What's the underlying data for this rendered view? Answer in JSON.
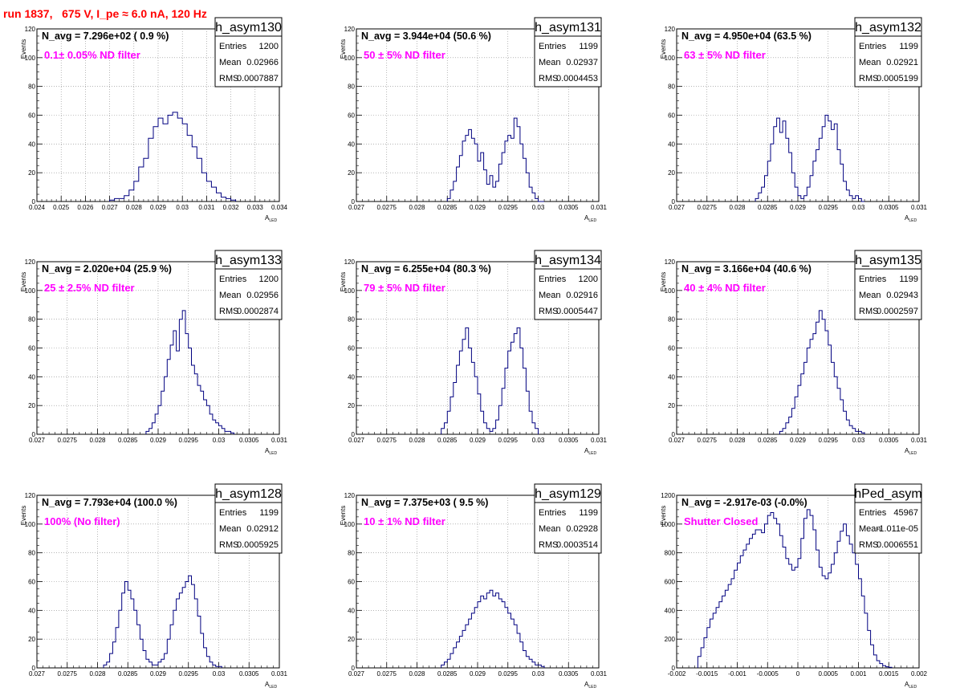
{
  "title": "run 1837,   675 V, I_pe ≈ 6.0 nA, 120 Hz",
  "x_axis_label_main": "A",
  "x_axis_label_sub": "LED",
  "y_axis_label": "Events",
  "stats_labels": {
    "entries": "Entries",
    "mean": "Mean",
    "rms": "RMS"
  },
  "colors": {
    "histogram": "#000080",
    "note": "#ff00ff",
    "title": "#ff0000",
    "grid": "#888888"
  },
  "chart_data": [
    {
      "type": "histogram",
      "name": "h_asym130",
      "navg_text": "N_avg = 7.296e+02 ( 0.9 %)",
      "note": "0.1± 0.05% ND filter",
      "entries": "1200",
      "mean": "0.02966",
      "rms": "0.0007887",
      "xlim": [
        0.024,
        0.034
      ],
      "ylim": [
        0,
        120
      ],
      "xticks": [
        "0.024",
        "0.025",
        "0.026",
        "0.027",
        "0.028",
        "0.029",
        "0.03",
        "0.031",
        "0.032",
        "0.033",
        "0.034"
      ],
      "yticks": [
        "0",
        "20",
        "40",
        "60",
        "80",
        "100",
        "120"
      ],
      "bins": [
        0.027,
        0.0272,
        0.0274,
        0.0276,
        0.0278,
        0.028,
        0.0282,
        0.0284,
        0.0286,
        0.0288,
        0.029,
        0.0292,
        0.0294,
        0.0296,
        0.0298,
        0.03,
        0.0302,
        0.0304,
        0.0306,
        0.0308,
        0.031,
        0.0312,
        0.0314,
        0.0316,
        0.0318,
        0.032,
        0.0322
      ],
      "counts": [
        1,
        2,
        2,
        4,
        8,
        14,
        24,
        30,
        44,
        52,
        58,
        54,
        60,
        62,
        58,
        54,
        46,
        38,
        30,
        20,
        14,
        10,
        6,
        3,
        2,
        1
      ]
    },
    {
      "type": "histogram",
      "name": "h_asym131",
      "navg_text": "N_avg = 3.944e+04 (50.6 %)",
      "note": "50 ± 5% ND filter",
      "entries": "1199",
      "mean": "0.02937",
      "rms": "0.0004453",
      "xlim": [
        0.027,
        0.031
      ],
      "ylim": [
        0,
        120
      ],
      "xticks": [
        "0.027",
        "0.0275",
        "0.028",
        "0.0285",
        "0.029",
        "0.0295",
        "0.03",
        "0.0305",
        "0.031"
      ],
      "yticks": [
        "0",
        "20",
        "40",
        "60",
        "80",
        "100",
        "120"
      ],
      "bins": [
        0.0285,
        0.02855,
        0.0286,
        0.02865,
        0.0287,
        0.02875,
        0.0288,
        0.02885,
        0.0289,
        0.02895,
        0.029,
        0.02905,
        0.0291,
        0.02915,
        0.0292,
        0.02925,
        0.0293,
        0.02935,
        0.0294,
        0.02945,
        0.0295,
        0.02955,
        0.0296,
        0.02965,
        0.0297,
        0.02975,
        0.0298,
        0.02985,
        0.0299,
        0.02995,
        0.03,
        0.03005,
        0.0301
      ],
      "counts": [
        2,
        8,
        14,
        24,
        32,
        42,
        46,
        50,
        44,
        40,
        28,
        34,
        22,
        12,
        18,
        10,
        14,
        26,
        34,
        42,
        46,
        44,
        58,
        52,
        40,
        30,
        20,
        10,
        6,
        2,
        0,
        0
      ]
    },
    {
      "type": "histogram",
      "name": "h_asym132",
      "navg_text": "N_avg = 4.950e+04 (63.5 %)",
      "note": "63 ± 5% ND filter",
      "entries": "1199",
      "mean": "0.02921",
      "rms": "0.0005199",
      "xlim": [
        0.027,
        0.031
      ],
      "ylim": [
        0,
        120
      ],
      "xticks": [
        "0.027",
        "0.0275",
        "0.028",
        "0.0285",
        "0.029",
        "0.0295",
        "0.03",
        "0.0305",
        "0.031"
      ],
      "yticks": [
        "0",
        "20",
        "40",
        "60",
        "80",
        "100",
        "120"
      ],
      "bins": [
        0.0283,
        0.02835,
        0.0284,
        0.02845,
        0.0285,
        0.02855,
        0.0286,
        0.02865,
        0.0287,
        0.02875,
        0.0288,
        0.02885,
        0.0289,
        0.02895,
        0.029,
        0.02905,
        0.0291,
        0.02915,
        0.0292,
        0.02925,
        0.0293,
        0.02935,
        0.0294,
        0.02945,
        0.0295,
        0.02955,
        0.0296,
        0.02965,
        0.0297,
        0.02975,
        0.0298,
        0.02985,
        0.0299,
        0.02995,
        0.03,
        0.03005,
        0.0301
      ],
      "counts": [
        2,
        6,
        10,
        18,
        28,
        40,
        52,
        58,
        48,
        56,
        44,
        34,
        20,
        10,
        4,
        2,
        4,
        10,
        18,
        28,
        36,
        44,
        52,
        60,
        56,
        50,
        54,
        36,
        26,
        14,
        8,
        4,
        2,
        4,
        2,
        0
      ]
    },
    {
      "type": "histogram",
      "name": "h_asym133",
      "navg_text": "N_avg = 2.020e+04 (25.9 %)",
      "note": "25 ± 2.5% ND filter",
      "entries": "1200",
      "mean": "0.02956",
      "rms": "0.0002874",
      "xlim": [
        0.027,
        0.031
      ],
      "ylim": [
        0,
        120
      ],
      "xticks": [
        "0.027",
        "0.0275",
        "0.028",
        "0.0285",
        "0.029",
        "0.0295",
        "0.03",
        "0.0305",
        "0.031"
      ],
      "yticks": [
        "0",
        "20",
        "40",
        "60",
        "80",
        "100",
        "120"
      ],
      "bins": [
        0.0288,
        0.02885,
        0.0289,
        0.02895,
        0.029,
        0.02905,
        0.0291,
        0.02915,
        0.0292,
        0.02925,
        0.0293,
        0.02935,
        0.0294,
        0.02945,
        0.0295,
        0.02955,
        0.0296,
        0.02965,
        0.0297,
        0.02975,
        0.0298,
        0.02985,
        0.0299,
        0.02995,
        0.03,
        0.03005,
        0.0301,
        0.03015,
        0.0302,
        0.03025
      ],
      "counts": [
        2,
        4,
        8,
        14,
        20,
        30,
        40,
        52,
        62,
        72,
        58,
        80,
        86,
        70,
        60,
        48,
        42,
        34,
        30,
        24,
        20,
        14,
        10,
        8,
        6,
        4,
        2,
        2,
        1
      ]
    },
    {
      "type": "histogram",
      "name": "h_asym134",
      "navg_text": "N_avg = 6.255e+04 (80.3 %)",
      "note": "79 ± 5% ND filter",
      "entries": "1200",
      "mean": "0.02916",
      "rms": "0.0005447",
      "xlim": [
        0.027,
        0.031
      ],
      "ylim": [
        0,
        120
      ],
      "xticks": [
        "0.027",
        "0.0275",
        "0.028",
        "0.0285",
        "0.029",
        "0.0295",
        "0.03",
        "0.0305",
        "0.031"
      ],
      "yticks": [
        "0",
        "20",
        "40",
        "60",
        "80",
        "100",
        "120"
      ],
      "bins": [
        0.0284,
        0.02845,
        0.0285,
        0.02855,
        0.0286,
        0.02865,
        0.0287,
        0.02875,
        0.0288,
        0.02885,
        0.0289,
        0.02895,
        0.029,
        0.02905,
        0.0291,
        0.02915,
        0.0292,
        0.02925,
        0.0293,
        0.02935,
        0.0294,
        0.02945,
        0.0295,
        0.02955,
        0.0296,
        0.02965,
        0.0297,
        0.02975,
        0.0298,
        0.02985,
        0.0299,
        0.02995,
        0.03
      ],
      "counts": [
        4,
        8,
        16,
        26,
        36,
        48,
        58,
        66,
        74,
        60,
        50,
        40,
        28,
        16,
        8,
        4,
        2,
        4,
        10,
        20,
        32,
        46,
        58,
        64,
        70,
        74,
        60,
        46,
        30,
        16,
        8,
        4
      ]
    },
    {
      "type": "histogram",
      "name": "h_asym135",
      "navg_text": "N_avg = 3.166e+04 (40.6 %)",
      "note": "40 ± 4% ND filter",
      "entries": "1199",
      "mean": "0.02943",
      "rms": "0.0002597",
      "xlim": [
        0.027,
        0.031
      ],
      "ylim": [
        0,
        120
      ],
      "xticks": [
        "0.027",
        "0.0275",
        "0.028",
        "0.0285",
        "0.029",
        "0.0295",
        "0.03",
        "0.0305",
        "0.031"
      ],
      "yticks": [
        "0",
        "20",
        "40",
        "60",
        "80",
        "100",
        "120"
      ],
      "bins": [
        0.0287,
        0.02875,
        0.0288,
        0.02885,
        0.0289,
        0.02895,
        0.029,
        0.02905,
        0.0291,
        0.02915,
        0.0292,
        0.02925,
        0.0293,
        0.02935,
        0.0294,
        0.02945,
        0.0295,
        0.02955,
        0.0296,
        0.02965,
        0.0297,
        0.02975,
        0.0298,
        0.02985,
        0.0299,
        0.02995,
        0.03,
        0.03005,
        0.0301
      ],
      "counts": [
        2,
        4,
        8,
        12,
        18,
        26,
        34,
        42,
        50,
        60,
        66,
        70,
        78,
        86,
        80,
        72,
        62,
        50,
        40,
        32,
        24,
        16,
        10,
        6,
        4,
        2,
        2,
        1
      ]
    },
    {
      "type": "histogram",
      "name": "h_asym128",
      "navg_text": "N_avg = 7.793e+04 (100.0 %)",
      "note": "100% (No filter)",
      "entries": "1199",
      "mean": "0.02912",
      "rms": "0.0005925",
      "xlim": [
        0.027,
        0.031
      ],
      "ylim": [
        0,
        120
      ],
      "xticks": [
        "0.027",
        "0.0275",
        "0.028",
        "0.0285",
        "0.029",
        "0.0295",
        "0.03",
        "0.0305",
        "0.031"
      ],
      "yticks": [
        "0",
        "20",
        "40",
        "60",
        "80",
        "100",
        "120"
      ],
      "bins": [
        0.0281,
        0.02815,
        0.0282,
        0.02825,
        0.0283,
        0.02835,
        0.0284,
        0.02845,
        0.0285,
        0.02855,
        0.0286,
        0.02865,
        0.0287,
        0.02875,
        0.0288,
        0.02885,
        0.0289,
        0.02895,
        0.029,
        0.02905,
        0.0291,
        0.02915,
        0.0292,
        0.02925,
        0.0293,
        0.02935,
        0.0294,
        0.02945,
        0.0295,
        0.02955,
        0.0296,
        0.02965,
        0.0297,
        0.02975,
        0.0298,
        0.02985,
        0.0299,
        0.02995,
        0.03,
        0.03005
      ],
      "counts": [
        2,
        4,
        10,
        18,
        28,
        40,
        52,
        60,
        54,
        48,
        40,
        30,
        20,
        12,
        6,
        4,
        2,
        2,
        4,
        6,
        10,
        20,
        30,
        40,
        48,
        52,
        56,
        60,
        64,
        58,
        48,
        36,
        24,
        14,
        8,
        4,
        2,
        1,
        1
      ]
    },
    {
      "type": "histogram",
      "name": "h_asym129",
      "navg_text": "N_avg = 7.375e+03 ( 9.5 %)",
      "note": "10 ± 1% ND filter",
      "entries": "1199",
      "mean": "0.02928",
      "rms": "0.0003514",
      "xlim": [
        0.027,
        0.031
      ],
      "ylim": [
        0,
        120
      ],
      "xticks": [
        "0.027",
        "0.0275",
        "0.028",
        "0.0285",
        "0.029",
        "0.0295",
        "0.03",
        "0.0305",
        "0.031"
      ],
      "yticks": [
        "0",
        "20",
        "40",
        "60",
        "80",
        "100",
        "120"
      ],
      "bins": [
        0.0284,
        0.02845,
        0.0285,
        0.02855,
        0.0286,
        0.02865,
        0.0287,
        0.02875,
        0.0288,
        0.02885,
        0.0289,
        0.02895,
        0.029,
        0.02905,
        0.0291,
        0.02915,
        0.0292,
        0.02925,
        0.0293,
        0.02935,
        0.0294,
        0.02945,
        0.0295,
        0.02955,
        0.0296,
        0.02965,
        0.0297,
        0.02975,
        0.0298,
        0.02985,
        0.0299,
        0.02995,
        0.03,
        0.03005,
        0.0301
      ],
      "counts": [
        2,
        4,
        6,
        10,
        14,
        18,
        22,
        26,
        30,
        34,
        38,
        42,
        46,
        50,
        48,
        52,
        54,
        50,
        52,
        48,
        46,
        42,
        38,
        34,
        30,
        24,
        18,
        12,
        8,
        6,
        4,
        2,
        2,
        1
      ]
    },
    {
      "type": "histogram",
      "name": "hPed_asym",
      "navg_text": "N_avg = -2.917e-03 (-0.0%)",
      "note": "Shutter Closed",
      "entries": "45967",
      "mean": "-1.011e-05",
      "rms": "0.0006551",
      "xlim": [
        -0.002,
        0.002
      ],
      "ylim": [
        0,
        1200
      ],
      "xticks": [
        "-0.002",
        "-0.0015",
        "-0.001",
        "-0.0005",
        "0",
        "0.0005",
        "0.001",
        "0.0015",
        "0.002"
      ],
      "yticks": [
        "0",
        "200",
        "400",
        "600",
        "800",
        "1000",
        "1200"
      ],
      "bins": [
        -0.00165,
        -0.0016,
        -0.00155,
        -0.0015,
        -0.00145,
        -0.0014,
        -0.00135,
        -0.0013,
        -0.00125,
        -0.0012,
        -0.00115,
        -0.0011,
        -0.00105,
        -0.001,
        -0.00095,
        -0.0009,
        -0.00085,
        -0.0008,
        -0.00075,
        -0.0007,
        -0.00065,
        -0.0006,
        -0.00055,
        -0.0005,
        -0.00045,
        -0.0004,
        -0.00035,
        -0.0003,
        -0.00025,
        -0.0002,
        -0.00015,
        -0.0001,
        -5e-05,
        0.0,
        5e-05,
        0.0001,
        0.00015,
        0.0002,
        0.00025,
        0.0003,
        0.00035,
        0.0004,
        0.00045,
        0.0005,
        0.00055,
        0.0006,
        0.00065,
        0.0007,
        0.00075,
        0.0008,
        0.00085,
        0.0009,
        0.00095,
        0.001,
        0.00105,
        0.0011,
        0.00115,
        0.0012,
        0.00125,
        0.0013,
        0.00135,
        0.0014,
        0.00145,
        0.0015,
        0.00155
      ],
      "counts": [
        80,
        140,
        210,
        280,
        340,
        380,
        420,
        460,
        500,
        540,
        580,
        620,
        680,
        730,
        780,
        820,
        860,
        900,
        930,
        960,
        960,
        940,
        1000,
        1060,
        1080,
        1040,
        1000,
        920,
        840,
        760,
        720,
        680,
        700,
        760,
        900,
        1040,
        1100,
        1060,
        960,
        820,
        700,
        640,
        620,
        660,
        720,
        800,
        880,
        950,
        1000,
        920,
        860,
        800,
        720,
        620,
        500,
        380,
        260,
        160,
        90,
        50,
        30,
        15,
        8,
        4
      ]
    }
  ]
}
